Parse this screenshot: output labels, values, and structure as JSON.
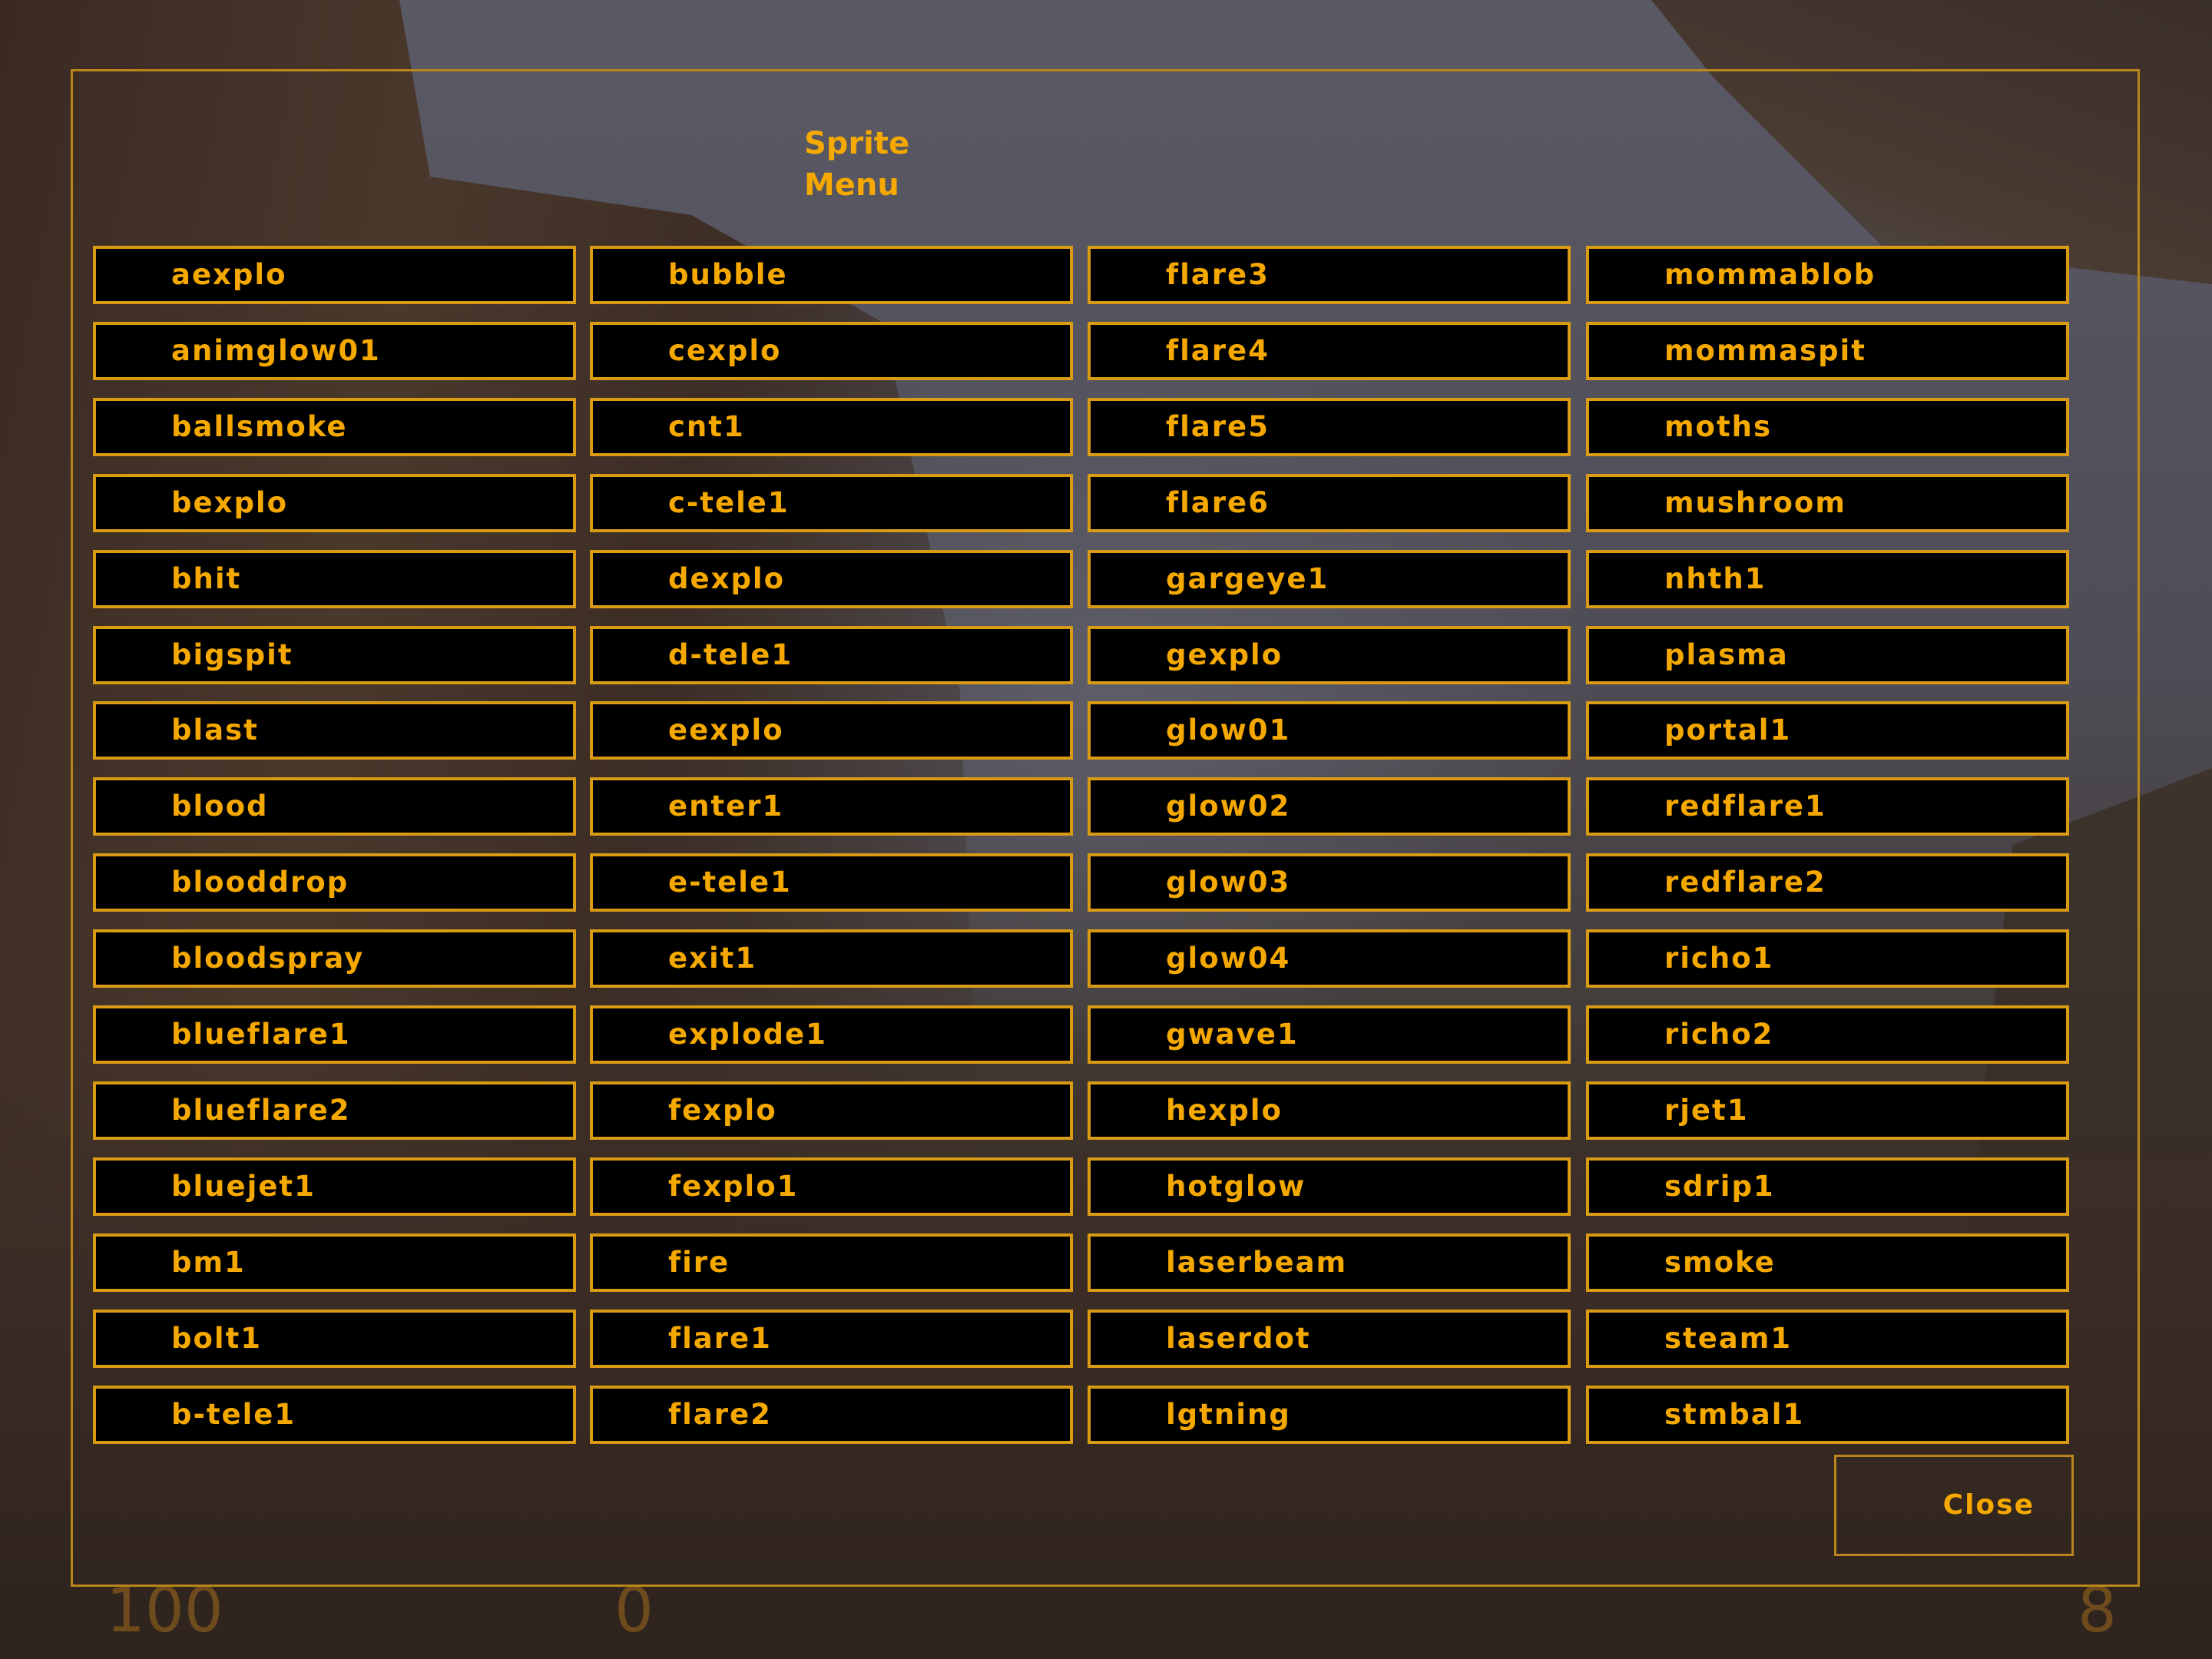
{
  "title_line1": "Sprite",
  "title_line2": "Menu",
  "accent_color": "#f5a800",
  "columns": [
    [
      "aexplo",
      "animglow01",
      "ballsmoke",
      "bexplo",
      "bhit",
      "bigspit",
      "blast",
      "blood",
      "blooddrop",
      "bloodspray",
      "blueflare1",
      "blueflare2",
      "bluejet1",
      "bm1",
      "bolt1",
      "b-tele1"
    ],
    [
      "bubble",
      "cexplo",
      "cnt1",
      "c-tele1",
      "dexplo",
      "d-tele1",
      "eexplo",
      "enter1",
      "e-tele1",
      "exit1",
      "explode1",
      "fexplo",
      "fexplo1",
      "fire",
      "flare1",
      "flare2"
    ],
    [
      "flare3",
      "flare4",
      "flare5",
      "flare6",
      "gargeye1",
      "gexplo",
      "glow01",
      "glow02",
      "glow03",
      "glow04",
      "gwave1",
      "hexplo",
      "hotglow",
      "laserbeam",
      "laserdot",
      "lgtning"
    ],
    [
      "mommablob",
      "mommaspit",
      "moths",
      "mushroom",
      "nhth1",
      "plasma",
      "portal1",
      "redflare1",
      "redflare2",
      "richo1",
      "richo2",
      "rjet1",
      "sdrip1",
      "smoke",
      "steam1",
      "stmbal1"
    ]
  ],
  "close_label": "Close",
  "hud": {
    "health": "100",
    "armor": "0",
    "ammo": "8"
  }
}
